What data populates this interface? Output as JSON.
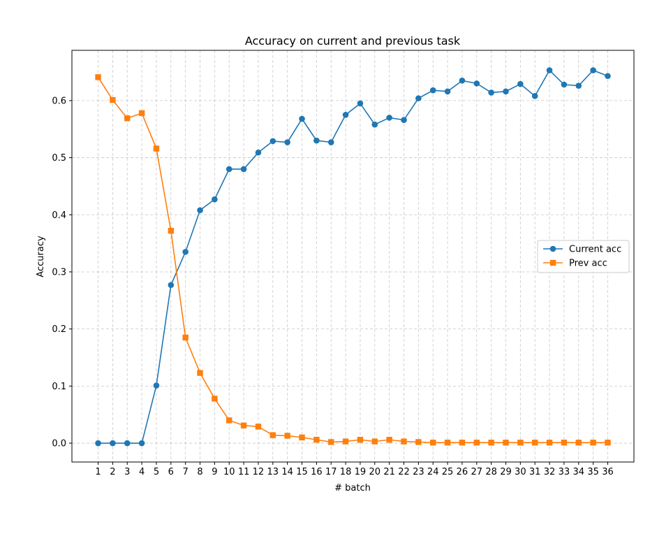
{
  "chart_data": {
    "type": "line",
    "title": "Accuracy on current and previous task",
    "xlabel": "# batch",
    "ylabel": "Accuracy",
    "x": [
      1,
      2,
      3,
      4,
      5,
      6,
      7,
      8,
      9,
      10,
      11,
      12,
      13,
      14,
      15,
      16,
      17,
      18,
      19,
      20,
      21,
      22,
      23,
      24,
      25,
      26,
      27,
      28,
      29,
      30,
      31,
      32,
      33,
      34,
      35,
      36
    ],
    "xlim": [
      -0.8,
      37.8
    ],
    "ylim": [
      -0.033,
      0.688
    ],
    "yticks": [
      0.0,
      0.1,
      0.2,
      0.3,
      0.4,
      0.5,
      0.6
    ],
    "ytick_labels": [
      "0.0",
      "0.1",
      "0.2",
      "0.3",
      "0.4",
      "0.5",
      "0.6"
    ],
    "xtick_labels": [
      "1",
      "2",
      "3",
      "4",
      "5",
      "6",
      "7",
      "8",
      "9",
      "10",
      "11",
      "12",
      "13",
      "14",
      "15",
      "16",
      "17",
      "18",
      "19",
      "20",
      "21",
      "22",
      "23",
      "24",
      "25",
      "26",
      "27",
      "28",
      "29",
      "30",
      "31",
      "32",
      "33",
      "34",
      "35",
      "36"
    ],
    "grid": true,
    "legend_position": "center-right",
    "series": [
      {
        "name": "Current acc",
        "color": "#1f77b4",
        "marker": "circle",
        "values": [
          0.0,
          0.0,
          0.0,
          0.0,
          0.101,
          0.277,
          0.335,
          0.408,
          0.427,
          0.48,
          0.48,
          0.509,
          0.529,
          0.527,
          0.568,
          0.53,
          0.527,
          0.575,
          0.595,
          0.558,
          0.57,
          0.566,
          0.604,
          0.618,
          0.616,
          0.635,
          0.63,
          0.614,
          0.616,
          0.629,
          0.608,
          0.653,
          0.628,
          0.626,
          0.653,
          0.643
        ]
      },
      {
        "name": "Prev acc",
        "color": "#ff7f0e",
        "marker": "square",
        "values": [
          0.641,
          0.601,
          0.569,
          0.578,
          0.516,
          0.372,
          0.185,
          0.123,
          0.078,
          0.04,
          0.031,
          0.029,
          0.014,
          0.013,
          0.01,
          0.006,
          0.002,
          0.003,
          0.006,
          0.003,
          0.006,
          0.003,
          0.002,
          0.001,
          0.001,
          0.001,
          0.001,
          0.001,
          0.001,
          0.001,
          0.001,
          0.001,
          0.001,
          0.001,
          0.001,
          0.001
        ]
      }
    ]
  }
}
